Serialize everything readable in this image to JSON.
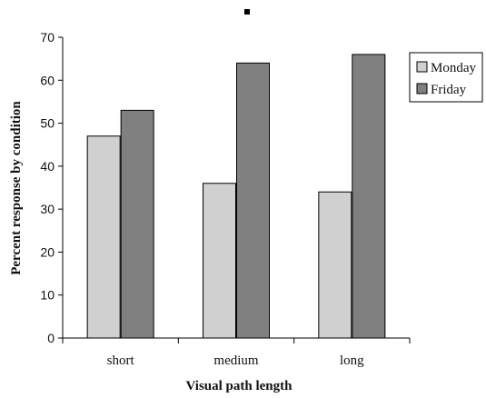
{
  "chart_data": {
    "type": "bar",
    "title": "",
    "xlabel": "Visual path length",
    "ylabel": "Percent response by condition",
    "categories": [
      "short",
      "medium",
      "long"
    ],
    "series": [
      {
        "name": "Monday",
        "values": [
          47,
          36,
          34
        ],
        "color": "#d0d0d0"
      },
      {
        "name": "Friday",
        "values": [
          53,
          64,
          66
        ],
        "color": "#808080"
      }
    ],
    "ylim": [
      0,
      70
    ],
    "yticks": [
      0,
      10,
      20,
      30,
      40,
      50,
      60,
      70
    ],
    "grid": false,
    "legend": "right"
  }
}
